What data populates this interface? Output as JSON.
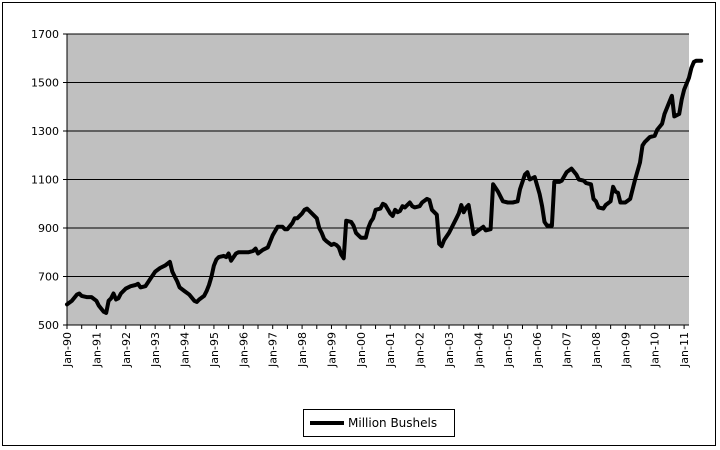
{
  "chart_data": {
    "type": "line",
    "title": "",
    "xlabel": "",
    "ylabel": "",
    "ylim": [
      500,
      1700
    ],
    "yticks": [
      500,
      700,
      900,
      1100,
      1300,
      1500,
      1700
    ],
    "x_tick_labels": [
      "Jan-90",
      "Jan-91",
      "Jan-92",
      "Jan-93",
      "Jan-94",
      "Jan-95",
      "Jan-96",
      "Jan-97",
      "Jan-98",
      "Jan-99",
      "Jan-00",
      "Jan-01",
      "Jan-02",
      "Jan-03",
      "Jan-04",
      "Jan-05",
      "Jan-06",
      "Jan-07",
      "Jan-08",
      "Jan-09",
      "Jan-10",
      "Jan-11"
    ],
    "xlim": [
      "1990-01",
      "2011-03"
    ],
    "grid": "horizontal",
    "plot_background": "#c0c0c0",
    "line_color": "#000000",
    "legend_position": "bottom",
    "series": [
      {
        "name": "Million Bushels",
        "points": [
          [
            "1990-01",
            585
          ],
          [
            "1990-03",
            600
          ],
          [
            "1990-05",
            625
          ],
          [
            "1990-06",
            630
          ],
          [
            "1990-07",
            620
          ],
          [
            "1990-09",
            615
          ],
          [
            "1990-11",
            615
          ],
          [
            "1991-01",
            600
          ],
          [
            "1991-02",
            580
          ],
          [
            "1991-04",
            555
          ],
          [
            "1991-05",
            550
          ],
          [
            "1991-06",
            600
          ],
          [
            "1991-07",
            610
          ],
          [
            "1991-08",
            630
          ],
          [
            "1991-09",
            605
          ],
          [
            "1991-10",
            610
          ],
          [
            "1991-11",
            630
          ],
          [
            "1992-01",
            650
          ],
          [
            "1992-03",
            660
          ],
          [
            "1992-05",
            665
          ],
          [
            "1992-06",
            670
          ],
          [
            "1992-07",
            655
          ],
          [
            "1992-09",
            660
          ],
          [
            "1992-11",
            690
          ],
          [
            "1993-01",
            720
          ],
          [
            "1993-03",
            735
          ],
          [
            "1993-05",
            745
          ],
          [
            "1993-07",
            760
          ],
          [
            "1993-08",
            720
          ],
          [
            "1993-09",
            700
          ],
          [
            "1993-10",
            680
          ],
          [
            "1993-11",
            655
          ],
          [
            "1994-01",
            640
          ],
          [
            "1994-03",
            625
          ],
          [
            "1994-05",
            600
          ],
          [
            "1994-06",
            595
          ],
          [
            "1994-07",
            605
          ],
          [
            "1994-09",
            620
          ],
          [
            "1994-10",
            640
          ],
          [
            "1994-11",
            665
          ],
          [
            "1994-12",
            700
          ],
          [
            "1995-01",
            745
          ],
          [
            "1995-02",
            770
          ],
          [
            "1995-03",
            780
          ],
          [
            "1995-05",
            785
          ],
          [
            "1995-06",
            780
          ],
          [
            "1995-07",
            795
          ],
          [
            "1995-08",
            765
          ],
          [
            "1995-09",
            780
          ],
          [
            "1995-10",
            795
          ],
          [
            "1995-11",
            800
          ],
          [
            "1996-01",
            800
          ],
          [
            "1996-03",
            800
          ],
          [
            "1996-05",
            805
          ],
          [
            "1996-06",
            815
          ],
          [
            "1996-07",
            795
          ],
          [
            "1996-09",
            810
          ],
          [
            "1996-11",
            820
          ],
          [
            "1997-01",
            870
          ],
          [
            "1997-03",
            905
          ],
          [
            "1997-05",
            905
          ],
          [
            "1997-06",
            895
          ],
          [
            "1997-07",
            895
          ],
          [
            "1997-09",
            920
          ],
          [
            "1997-10",
            940
          ],
          [
            "1997-11",
            940
          ],
          [
            "1998-01",
            960
          ],
          [
            "1998-02",
            975
          ],
          [
            "1998-03",
            980
          ],
          [
            "1998-05",
            960
          ],
          [
            "1998-07",
            940
          ],
          [
            "1998-08",
            900
          ],
          [
            "1998-09",
            880
          ],
          [
            "1998-10",
            855
          ],
          [
            "1998-11",
            845
          ],
          [
            "1999-01",
            830
          ],
          [
            "1999-02",
            835
          ],
          [
            "1999-03",
            830
          ],
          [
            "1999-04",
            820
          ],
          [
            "1999-05",
            790
          ],
          [
            "1999-06",
            775
          ],
          [
            "1999-07",
            930
          ],
          [
            "1999-09",
            925
          ],
          [
            "1999-10",
            910
          ],
          [
            "1999-11",
            880
          ],
          [
            "2000-01",
            860
          ],
          [
            "2000-03",
            860
          ],
          [
            "2000-04",
            900
          ],
          [
            "2000-05",
            925
          ],
          [
            "2000-06",
            940
          ],
          [
            "2000-07",
            975
          ],
          [
            "2000-09",
            980
          ],
          [
            "2000-10",
            1000
          ],
          [
            "2000-11",
            995
          ],
          [
            "2001-01",
            960
          ],
          [
            "2001-02",
            950
          ],
          [
            "2001-03",
            975
          ],
          [
            "2001-04",
            965
          ],
          [
            "2001-05",
            970
          ],
          [
            "2001-06",
            990
          ],
          [
            "2001-07",
            985
          ],
          [
            "2001-09",
            1005
          ],
          [
            "2001-10",
            990
          ],
          [
            "2001-11",
            985
          ],
          [
            "2002-01",
            990
          ],
          [
            "2002-02",
            1005
          ],
          [
            "2002-04",
            1020
          ],
          [
            "2002-05",
            1015
          ],
          [
            "2002-06",
            975
          ],
          [
            "2002-08",
            955
          ],
          [
            "2002-09",
            835
          ],
          [
            "2002-10",
            825
          ],
          [
            "2002-11",
            850
          ],
          [
            "2003-01",
            880
          ],
          [
            "2003-02",
            900
          ],
          [
            "2003-04",
            940
          ],
          [
            "2003-05",
            960
          ],
          [
            "2003-06",
            995
          ],
          [
            "2003-07",
            965
          ],
          [
            "2003-08",
            985
          ],
          [
            "2003-09",
            995
          ],
          [
            "2003-11",
            875
          ],
          [
            "2004-01",
            890
          ],
          [
            "2004-03",
            905
          ],
          [
            "2004-04",
            890
          ],
          [
            "2004-06",
            895
          ],
          [
            "2004-07",
            1080
          ],
          [
            "2004-09",
            1050
          ],
          [
            "2004-11",
            1010
          ],
          [
            "2005-01",
            1005
          ],
          [
            "2005-03",
            1005
          ],
          [
            "2005-05",
            1010
          ],
          [
            "2005-06",
            1060
          ],
          [
            "2005-08",
            1120
          ],
          [
            "2005-09",
            1130
          ],
          [
            "2005-10",
            1100
          ],
          [
            "2005-12",
            1110
          ],
          [
            "2006-02",
            1040
          ],
          [
            "2006-03",
            990
          ],
          [
            "2006-04",
            925
          ],
          [
            "2006-05",
            910
          ],
          [
            "2006-07",
            910
          ],
          [
            "2006-08",
            1090
          ],
          [
            "2006-10",
            1090
          ],
          [
            "2006-11",
            1095
          ],
          [
            "2007-01",
            1130
          ],
          [
            "2007-03",
            1145
          ],
          [
            "2007-05",
            1120
          ],
          [
            "2007-06",
            1100
          ],
          [
            "2007-08",
            1095
          ],
          [
            "2007-09",
            1085
          ],
          [
            "2007-11",
            1080
          ],
          [
            "2007-12",
            1020
          ],
          [
            "2008-01",
            1010
          ],
          [
            "2008-02",
            985
          ],
          [
            "2008-04",
            980
          ],
          [
            "2008-05",
            995
          ],
          [
            "2008-07",
            1010
          ],
          [
            "2008-08",
            1070
          ],
          [
            "2008-09",
            1050
          ],
          [
            "2008-10",
            1045
          ],
          [
            "2008-11",
            1005
          ],
          [
            "2009-01",
            1005
          ],
          [
            "2009-03",
            1020
          ],
          [
            "2009-05",
            1100
          ],
          [
            "2009-07",
            1170
          ],
          [
            "2009-08",
            1240
          ],
          [
            "2009-09",
            1255
          ],
          [
            "2009-10",
            1265
          ],
          [
            "2009-11",
            1275
          ],
          [
            "2010-01",
            1280
          ],
          [
            "2010-02",
            1305
          ],
          [
            "2010-04",
            1330
          ],
          [
            "2010-05",
            1370
          ],
          [
            "2010-07",
            1420
          ],
          [
            "2010-08",
            1445
          ],
          [
            "2010-09",
            1360
          ],
          [
            "2010-11",
            1370
          ],
          [
            "2010-12",
            1430
          ],
          [
            "2011-01",
            1470
          ],
          [
            "2011-03",
            1520
          ],
          [
            "2011-04",
            1560
          ],
          [
            "2011-05",
            1585
          ],
          [
            "2011-06",
            1590
          ],
          [
            "2011-08",
            1590
          ]
        ]
      }
    ]
  }
}
